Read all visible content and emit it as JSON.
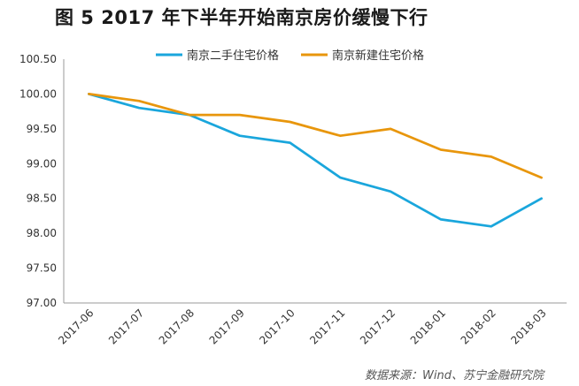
{
  "title": "图 5 2017 年下半年开始南京房价缓慢下行",
  "source": "数据来源：Wind、苏宁金融研究院",
  "chart_data": {
    "type": "line",
    "categories": [
      "2017-06",
      "2017-07",
      "2017-08",
      "2017-09",
      "2017-10",
      "2017-11",
      "2017-12",
      "2018-01",
      "2018-02",
      "2018-03"
    ],
    "series": [
      {
        "name": "南京二手住宅价格",
        "color": "#1aa6dc",
        "values": [
          100.0,
          99.8,
          99.7,
          99.4,
          99.3,
          98.8,
          98.6,
          98.2,
          98.1,
          98.5
        ]
      },
      {
        "name": "南京新建住宅价格",
        "color": "#e8960c",
        "values": [
          100.0,
          99.9,
          99.7,
          99.7,
          99.6,
          99.4,
          99.5,
          99.2,
          99.1,
          98.8
        ]
      }
    ],
    "y_ticks": [
      "97.00",
      "97.50",
      "98.00",
      "98.50",
      "99.00",
      "99.50",
      "100.00",
      "100.50"
    ],
    "ylim": [
      97.0,
      100.5
    ],
    "grid": false,
    "legend_position": "top"
  }
}
